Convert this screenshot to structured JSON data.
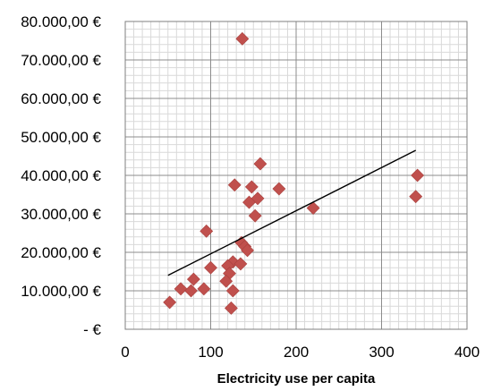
{
  "chart_data": {
    "type": "scatter",
    "title": "",
    "xlabel": "Electricity use per capita",
    "ylabel": "",
    "xlim": [
      0,
      400
    ],
    "ylim": [
      0,
      80000
    ],
    "x_ticks": [
      0,
      100,
      200,
      300,
      400
    ],
    "x_tick_labels": [
      "0",
      "100",
      "200",
      "300",
      "400"
    ],
    "y_ticks": [
      0,
      10000,
      20000,
      30000,
      40000,
      50000,
      60000,
      70000,
      80000
    ],
    "y_tick_labels": [
      "- €",
      "10.000,00 €",
      "20.000,00 €",
      "30.000,00 €",
      "40.000,00 €",
      "50.000,00 €",
      "60.000,00 €",
      "70.000,00 €",
      "80.000,00 €"
    ],
    "grid": true,
    "minor_grid_x_step": 10,
    "minor_grid_y_step": 2000,
    "marker_color": "#c0504d",
    "trendline": {
      "x": [
        50,
        340
      ],
      "y": [
        14000,
        46500
      ],
      "color": "#000000"
    },
    "series": [
      {
        "points": [
          {
            "x": 137,
            "y": 75500
          },
          {
            "x": 158,
            "y": 43000
          },
          {
            "x": 342,
            "y": 40000
          },
          {
            "x": 128,
            "y": 37500
          },
          {
            "x": 148,
            "y": 37000
          },
          {
            "x": 180,
            "y": 36500
          },
          {
            "x": 340,
            "y": 34500
          },
          {
            "x": 155,
            "y": 34000
          },
          {
            "x": 145,
            "y": 33000
          },
          {
            "x": 220,
            "y": 31500
          },
          {
            "x": 152,
            "y": 29500
          },
          {
            "x": 95,
            "y": 25500
          },
          {
            "x": 136,
            "y": 22500
          },
          {
            "x": 140,
            "y": 21500
          },
          {
            "x": 143,
            "y": 20500
          },
          {
            "x": 126,
            "y": 17500
          },
          {
            "x": 135,
            "y": 17000
          },
          {
            "x": 120,
            "y": 16500
          },
          {
            "x": 100,
            "y": 16000
          },
          {
            "x": 122,
            "y": 14500
          },
          {
            "x": 80,
            "y": 13000
          },
          {
            "x": 118,
            "y": 12500
          },
          {
            "x": 65,
            "y": 10500
          },
          {
            "x": 77,
            "y": 10000
          },
          {
            "x": 92,
            "y": 10500
          },
          {
            "x": 126,
            "y": 10000
          },
          {
            "x": 52,
            "y": 7000
          },
          {
            "x": 124,
            "y": 5500
          }
        ]
      }
    ]
  }
}
